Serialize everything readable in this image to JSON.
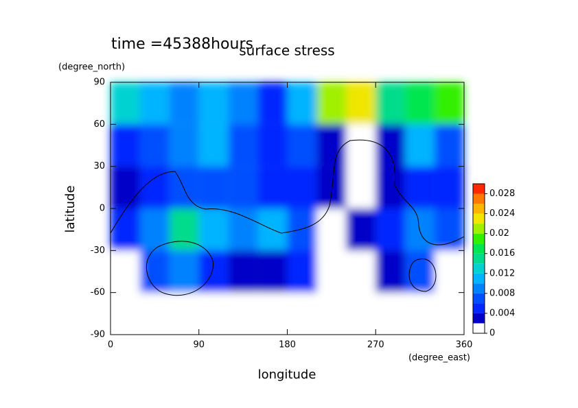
{
  "chart_data": {
    "type": "contour",
    "title": "surface stress",
    "subtitle": "time =45388hours",
    "x_label": "longitude",
    "x_units": "(degree_east)",
    "y_label": "latitude",
    "y_units": "(degree_north)",
    "x": [
      15,
      45,
      75,
      105,
      135,
      165,
      195,
      225,
      255,
      285,
      315,
      345
    ],
    "y": [
      75,
      45,
      15,
      -15,
      -45,
      -75
    ],
    "z": [
      [
        0.012,
        0.01,
        0.008,
        0.01,
        0.008,
        0.004,
        0.01,
        0.02,
        0.022,
        0.014,
        0.016,
        0.018
      ],
      [
        0.004,
        0.006,
        0.008,
        0.01,
        0.006,
        0.004,
        0.006,
        0.002,
        0,
        0.002,
        0.01,
        0.006
      ],
      [
        0.002,
        0.004,
        0.006,
        0.006,
        0.006,
        0.004,
        0.004,
        0.002,
        0,
        0.002,
        0.004,
        0.004
      ],
      [
        0.004,
        0.008,
        0.014,
        0.01,
        0.008,
        0.01,
        0.006,
        0,
        0.002,
        0.004,
        0.008,
        0.006
      ],
      [
        0,
        0.006,
        0.008,
        0.004,
        0.002,
        0.002,
        0.004,
        0,
        0,
        0.002,
        0.006,
        0
      ],
      [
        0,
        0,
        0,
        0,
        0,
        0,
        0,
        0,
        0,
        0,
        0,
        0
      ]
    ],
    "xlim": [
      0,
      360
    ],
    "xticks": [
      0,
      90,
      180,
      270,
      360
    ],
    "ylim": [
      -90,
      90
    ],
    "yticks": [
      -90,
      -60,
      -30,
      0,
      30,
      60,
      90
    ],
    "clevels": [
      0,
      0.002,
      0.004,
      0.006,
      0.008,
      0.01,
      0.012,
      0.014,
      0.016,
      0.018,
      0.02,
      0.022,
      0.024,
      0.026,
      0.028
    ],
    "colors": [
      "#ffffff",
      "#0000c8",
      "#0028ff",
      "#0050ff",
      "#0082ff",
      "#00b4ff",
      "#00d2d2",
      "#00dc8c",
      "#00e650",
      "#32f000",
      "#a0f000",
      "#f0e600",
      "#ffb400",
      "#ff7800",
      "#ff2800"
    ],
    "clim": [
      0,
      0.03
    ],
    "cticks": [
      0,
      0.004,
      0.008,
      0.012,
      0.016,
      0.02,
      0.024,
      0.028
    ]
  }
}
